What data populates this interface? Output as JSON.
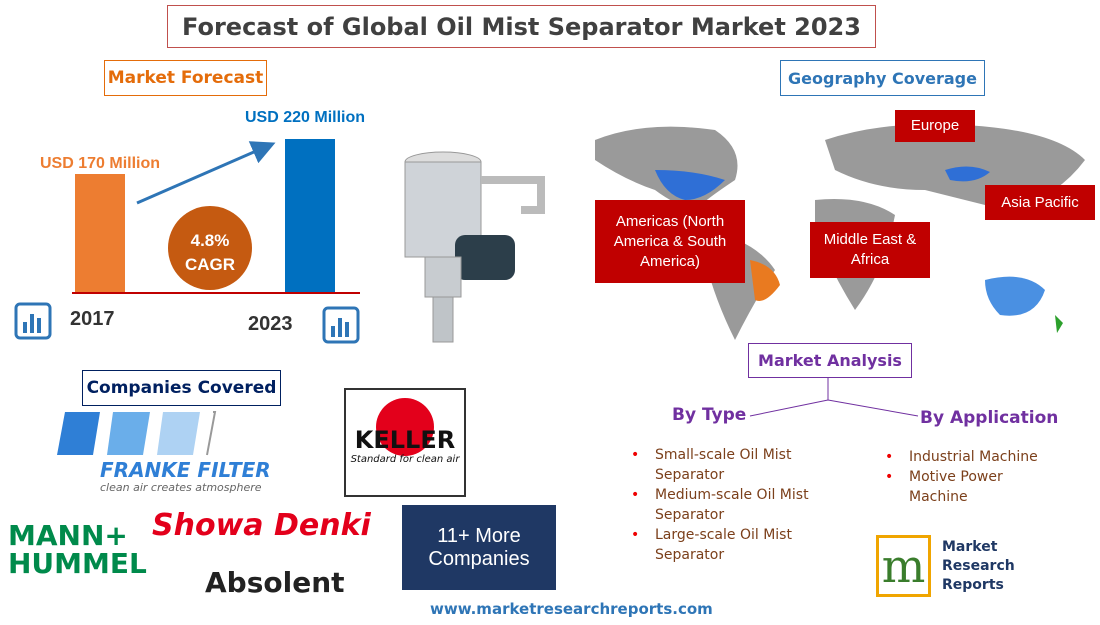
{
  "header": {
    "title": "Forecast of Global Oil Mist Separator Market 2023"
  },
  "forecast": {
    "title": "Market Forecast",
    "bars": [
      {
        "year": "2017",
        "value": 170,
        "value_label": "USD 170 Million",
        "color": "#ed7d31"
      },
      {
        "year": "2023",
        "value": 220,
        "value_label": "USD 220 Million",
        "color": "#0070c0"
      }
    ],
    "cagr": "4.8%",
    "cagr_label": "CAGR"
  },
  "geography": {
    "title": "Geography Coverage",
    "regions": [
      "Europe",
      "Asia Pacific",
      "Americas (North America & South America)",
      "Middle East & Africa"
    ]
  },
  "analysis": {
    "title": "Market Analysis",
    "by_type": {
      "title": "By Type",
      "items": [
        "Small-scale Oil Mist Separator",
        "Medium-scale Oil Mist Separator",
        "Large-scale Oil Mist Separator"
      ]
    },
    "by_application": {
      "title": "By Application",
      "items": [
        "Industrial Machine",
        "Motive Power Machine"
      ]
    }
  },
  "companies": {
    "title": "Companies Covered",
    "logos": [
      "FRANKE FILTER",
      "clean air creates atmosphere",
      "KELLER",
      "Standard for clean air",
      "MANN+",
      "HUMMEL",
      "Showa Denki",
      "Absolent"
    ],
    "more": "11+ More Companies"
  },
  "footer": {
    "brand": [
      "Market",
      "Research",
      "Reports"
    ],
    "url": "www.marketresearchreports.com"
  }
}
